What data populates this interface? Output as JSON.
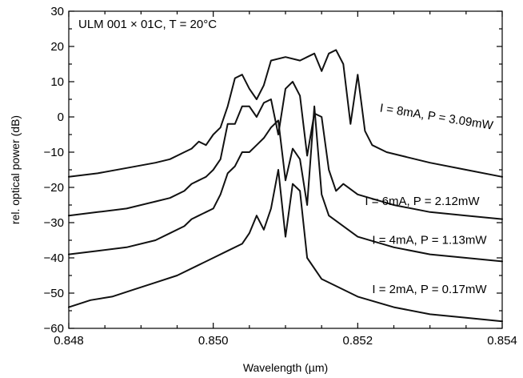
{
  "chart_data": {
    "type": "line",
    "title": "ULM 001 × 01C, T = 20°C",
    "xlabel": "Wavelength (µm)",
    "ylabel": "rel. optical power (dB)",
    "xlim": [
      0.848,
      0.854
    ],
    "ylim": [
      -60,
      30
    ],
    "xticks": [
      0.848,
      0.85,
      0.852,
      0.854
    ],
    "xtick_labels": [
      "0.848",
      "0.850",
      "0.852",
      "0.854"
    ],
    "yticks": [
      -60,
      -50,
      -40,
      -30,
      -20,
      -10,
      0,
      10,
      20,
      30
    ],
    "ytick_labels": [
      "−60",
      "−50",
      "−40",
      "−30",
      "−20",
      "−10",
      "0",
      "10",
      "20",
      "30"
    ],
    "grid": false,
    "series": [
      {
        "name": "I = 8mA, P = 3.09mW",
        "points": [
          [
            0.848,
            -17
          ],
          [
            0.8484,
            -16
          ],
          [
            0.8488,
            -14.5
          ],
          [
            0.8492,
            -13
          ],
          [
            0.8494,
            -12
          ],
          [
            0.8496,
            -10
          ],
          [
            0.8497,
            -9
          ],
          [
            0.8498,
            -7
          ],
          [
            0.8499,
            -8
          ],
          [
            0.85,
            -5
          ],
          [
            0.8501,
            -3
          ],
          [
            0.8502,
            3
          ],
          [
            0.8503,
            11
          ],
          [
            0.8504,
            12
          ],
          [
            0.8505,
            8
          ],
          [
            0.8506,
            5
          ],
          [
            0.8507,
            9
          ],
          [
            0.8508,
            16
          ],
          [
            0.851,
            17
          ],
          [
            0.8512,
            16
          ],
          [
            0.8513,
            17
          ],
          [
            0.8514,
            18
          ],
          [
            0.8515,
            13
          ],
          [
            0.8516,
            18
          ],
          [
            0.8517,
            19
          ],
          [
            0.8518,
            15
          ],
          [
            0.8519,
            -2
          ],
          [
            0.852,
            12
          ],
          [
            0.8521,
            -4
          ],
          [
            0.8522,
            -8
          ],
          [
            0.8524,
            -10
          ],
          [
            0.853,
            -13
          ],
          [
            0.8535,
            -15
          ],
          [
            0.854,
            -17
          ]
        ]
      },
      {
        "name": "I = 6mA, P = 2.12mW",
        "points": [
          [
            0.848,
            -28
          ],
          [
            0.8484,
            -27
          ],
          [
            0.8488,
            -26
          ],
          [
            0.8492,
            -24
          ],
          [
            0.8494,
            -23
          ],
          [
            0.8496,
            -21
          ],
          [
            0.8497,
            -19
          ],
          [
            0.8498,
            -18
          ],
          [
            0.8499,
            -17
          ],
          [
            0.85,
            -15
          ],
          [
            0.8501,
            -12
          ],
          [
            0.8502,
            -2
          ],
          [
            0.8503,
            -2
          ],
          [
            0.8504,
            3
          ],
          [
            0.8505,
            3
          ],
          [
            0.8506,
            0
          ],
          [
            0.8507,
            4
          ],
          [
            0.8508,
            5
          ],
          [
            0.8509,
            -5
          ],
          [
            0.851,
            8
          ],
          [
            0.8511,
            10
          ],
          [
            0.8512,
            6
          ],
          [
            0.8513,
            -11
          ],
          [
            0.8514,
            1
          ],
          [
            0.8515,
            0
          ],
          [
            0.8516,
            -15
          ],
          [
            0.8517,
            -21
          ],
          [
            0.8518,
            -19
          ],
          [
            0.852,
            -22
          ],
          [
            0.8525,
            -25
          ],
          [
            0.853,
            -27
          ],
          [
            0.8535,
            -28
          ],
          [
            0.854,
            -29
          ]
        ]
      },
      {
        "name": "I = 4mA, P = 1.13mW",
        "points": [
          [
            0.848,
            -39
          ],
          [
            0.8484,
            -38
          ],
          [
            0.8488,
            -37
          ],
          [
            0.8492,
            -35
          ],
          [
            0.8494,
            -33
          ],
          [
            0.8496,
            -31
          ],
          [
            0.8497,
            -29
          ],
          [
            0.8498,
            -28
          ],
          [
            0.8499,
            -27
          ],
          [
            0.85,
            -26
          ],
          [
            0.8501,
            -22
          ],
          [
            0.8502,
            -16
          ],
          [
            0.8503,
            -14
          ],
          [
            0.8504,
            -10
          ],
          [
            0.8505,
            -10
          ],
          [
            0.8506,
            -8
          ],
          [
            0.8507,
            -6
          ],
          [
            0.8508,
            -3
          ],
          [
            0.8509,
            -1
          ],
          [
            0.851,
            -18
          ],
          [
            0.8511,
            -9
          ],
          [
            0.8512,
            -12
          ],
          [
            0.8513,
            -25
          ],
          [
            0.8514,
            3
          ],
          [
            0.8515,
            -22
          ],
          [
            0.8516,
            -28
          ],
          [
            0.852,
            -34
          ],
          [
            0.8525,
            -37
          ],
          [
            0.853,
            -39
          ],
          [
            0.8535,
            -40
          ],
          [
            0.854,
            -41
          ]
        ]
      },
      {
        "name": "I = 2mA, P = 0.17mW",
        "points": [
          [
            0.848,
            -54
          ],
          [
            0.8483,
            -52
          ],
          [
            0.8486,
            -51
          ],
          [
            0.8489,
            -49
          ],
          [
            0.8492,
            -47
          ],
          [
            0.8495,
            -45
          ],
          [
            0.8498,
            -42
          ],
          [
            0.85,
            -40
          ],
          [
            0.8502,
            -38
          ],
          [
            0.8504,
            -36
          ],
          [
            0.8505,
            -33
          ],
          [
            0.8506,
            -28
          ],
          [
            0.8507,
            -32
          ],
          [
            0.8508,
            -26
          ],
          [
            0.8509,
            -15
          ],
          [
            0.851,
            -34
          ],
          [
            0.8511,
            -19
          ],
          [
            0.8512,
            -21
          ],
          [
            0.8513,
            -40
          ],
          [
            0.8515,
            -46
          ],
          [
            0.852,
            -51
          ],
          [
            0.8525,
            -54
          ],
          [
            0.853,
            -56
          ],
          [
            0.8535,
            -57
          ],
          [
            0.854,
            -58
          ]
        ]
      }
    ]
  },
  "annotations": [
    {
      "text": "I = 8mA, P = 3.09mW",
      "x": 0.8523,
      "y": 1.5,
      "rotate": 9
    },
    {
      "text": "I = 6mA, P = 2.12mW",
      "x": 0.8521,
      "y": -25,
      "rotate": 0
    },
    {
      "text": "I = 4mA, P = 1.13mW",
      "x": 0.8522,
      "y": -36,
      "rotate": 0
    },
    {
      "text": "I = 2mA, P = 0.17mW",
      "x": 0.8522,
      "y": -50,
      "rotate": 0
    }
  ]
}
